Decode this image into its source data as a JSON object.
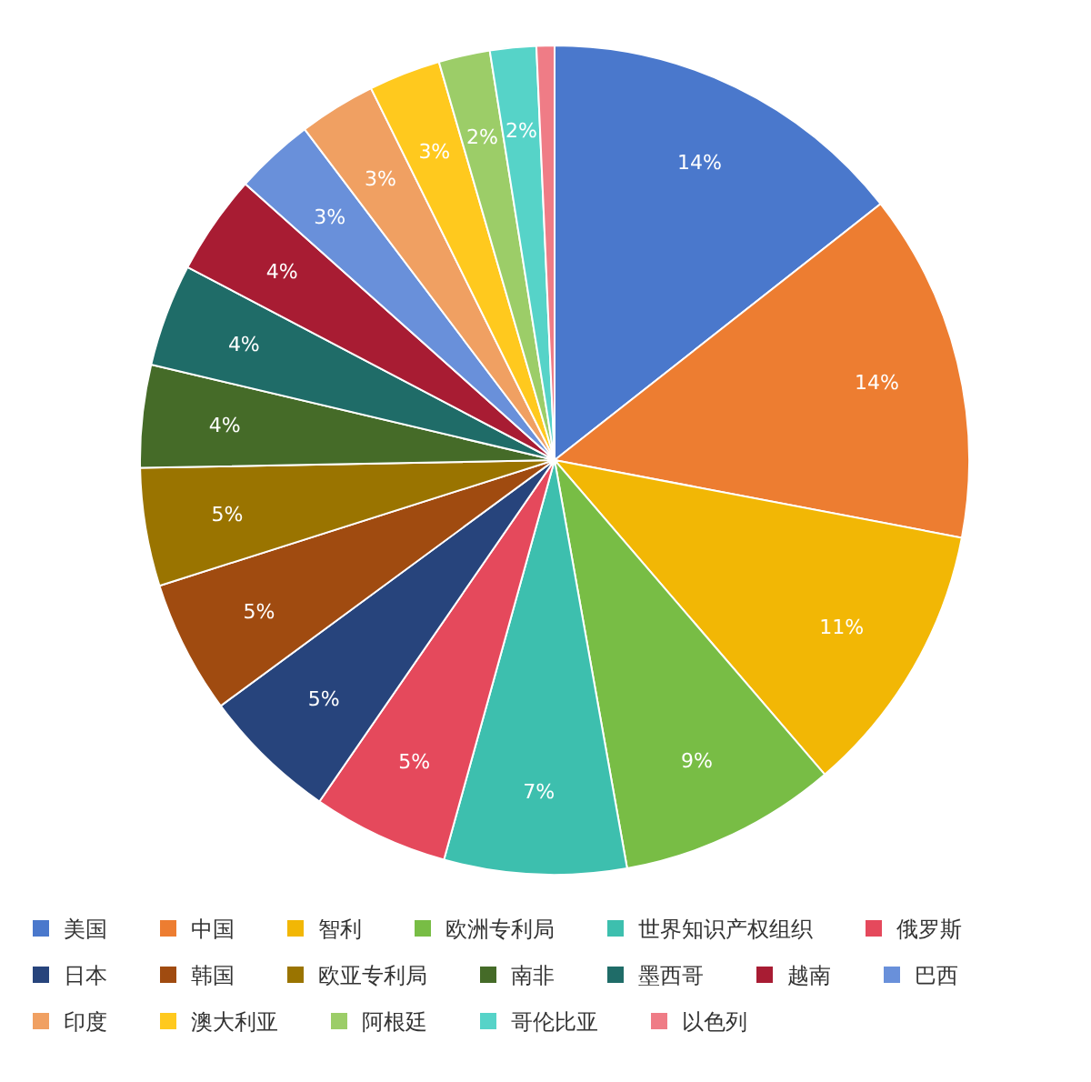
{
  "chart_data": {
    "type": "pie",
    "legend": "bottom",
    "categories": [
      "美国",
      "中国",
      "智利",
      "欧洲专利局",
      "世界知识产权组织",
      "俄罗斯",
      "日本",
      "韩国",
      "欧亚专利局",
      "南非",
      "墨西哥",
      "越南",
      "巴西",
      "印度",
      "澳大利亚",
      "阿根廷",
      "哥伦比亚",
      "以色列"
    ],
    "values": [
      14.4,
      13.6,
      10.7,
      8.5,
      7.1,
      5.3,
      5.3,
      5.2,
      4.6,
      4.0,
      4.0,
      3.9,
      3.1,
      3.0,
      2.8,
      2.0,
      1.8,
      0.7
    ],
    "value_labels": [
      "14%",
      "14%",
      "11%",
      "9%",
      "7%",
      "5%",
      "5%",
      "5%",
      "5%",
      "4%",
      "4%",
      "4%",
      "3%",
      "3%",
      "3%",
      "2%",
      "2%",
      null
    ],
    "colors": [
      "#4a78cc",
      "#ed7d31",
      "#f2b705",
      "#78bd45",
      "#3dbfae",
      "#e5495c",
      "#27447c",
      "#a04b10",
      "#9a7400",
      "#456b28",
      "#1f6c68",
      "#a81c33",
      "#6990da",
      "#f0a062",
      "#ffc91e",
      "#9ccd68",
      "#56d3c8",
      "#ef7c86"
    ]
  }
}
